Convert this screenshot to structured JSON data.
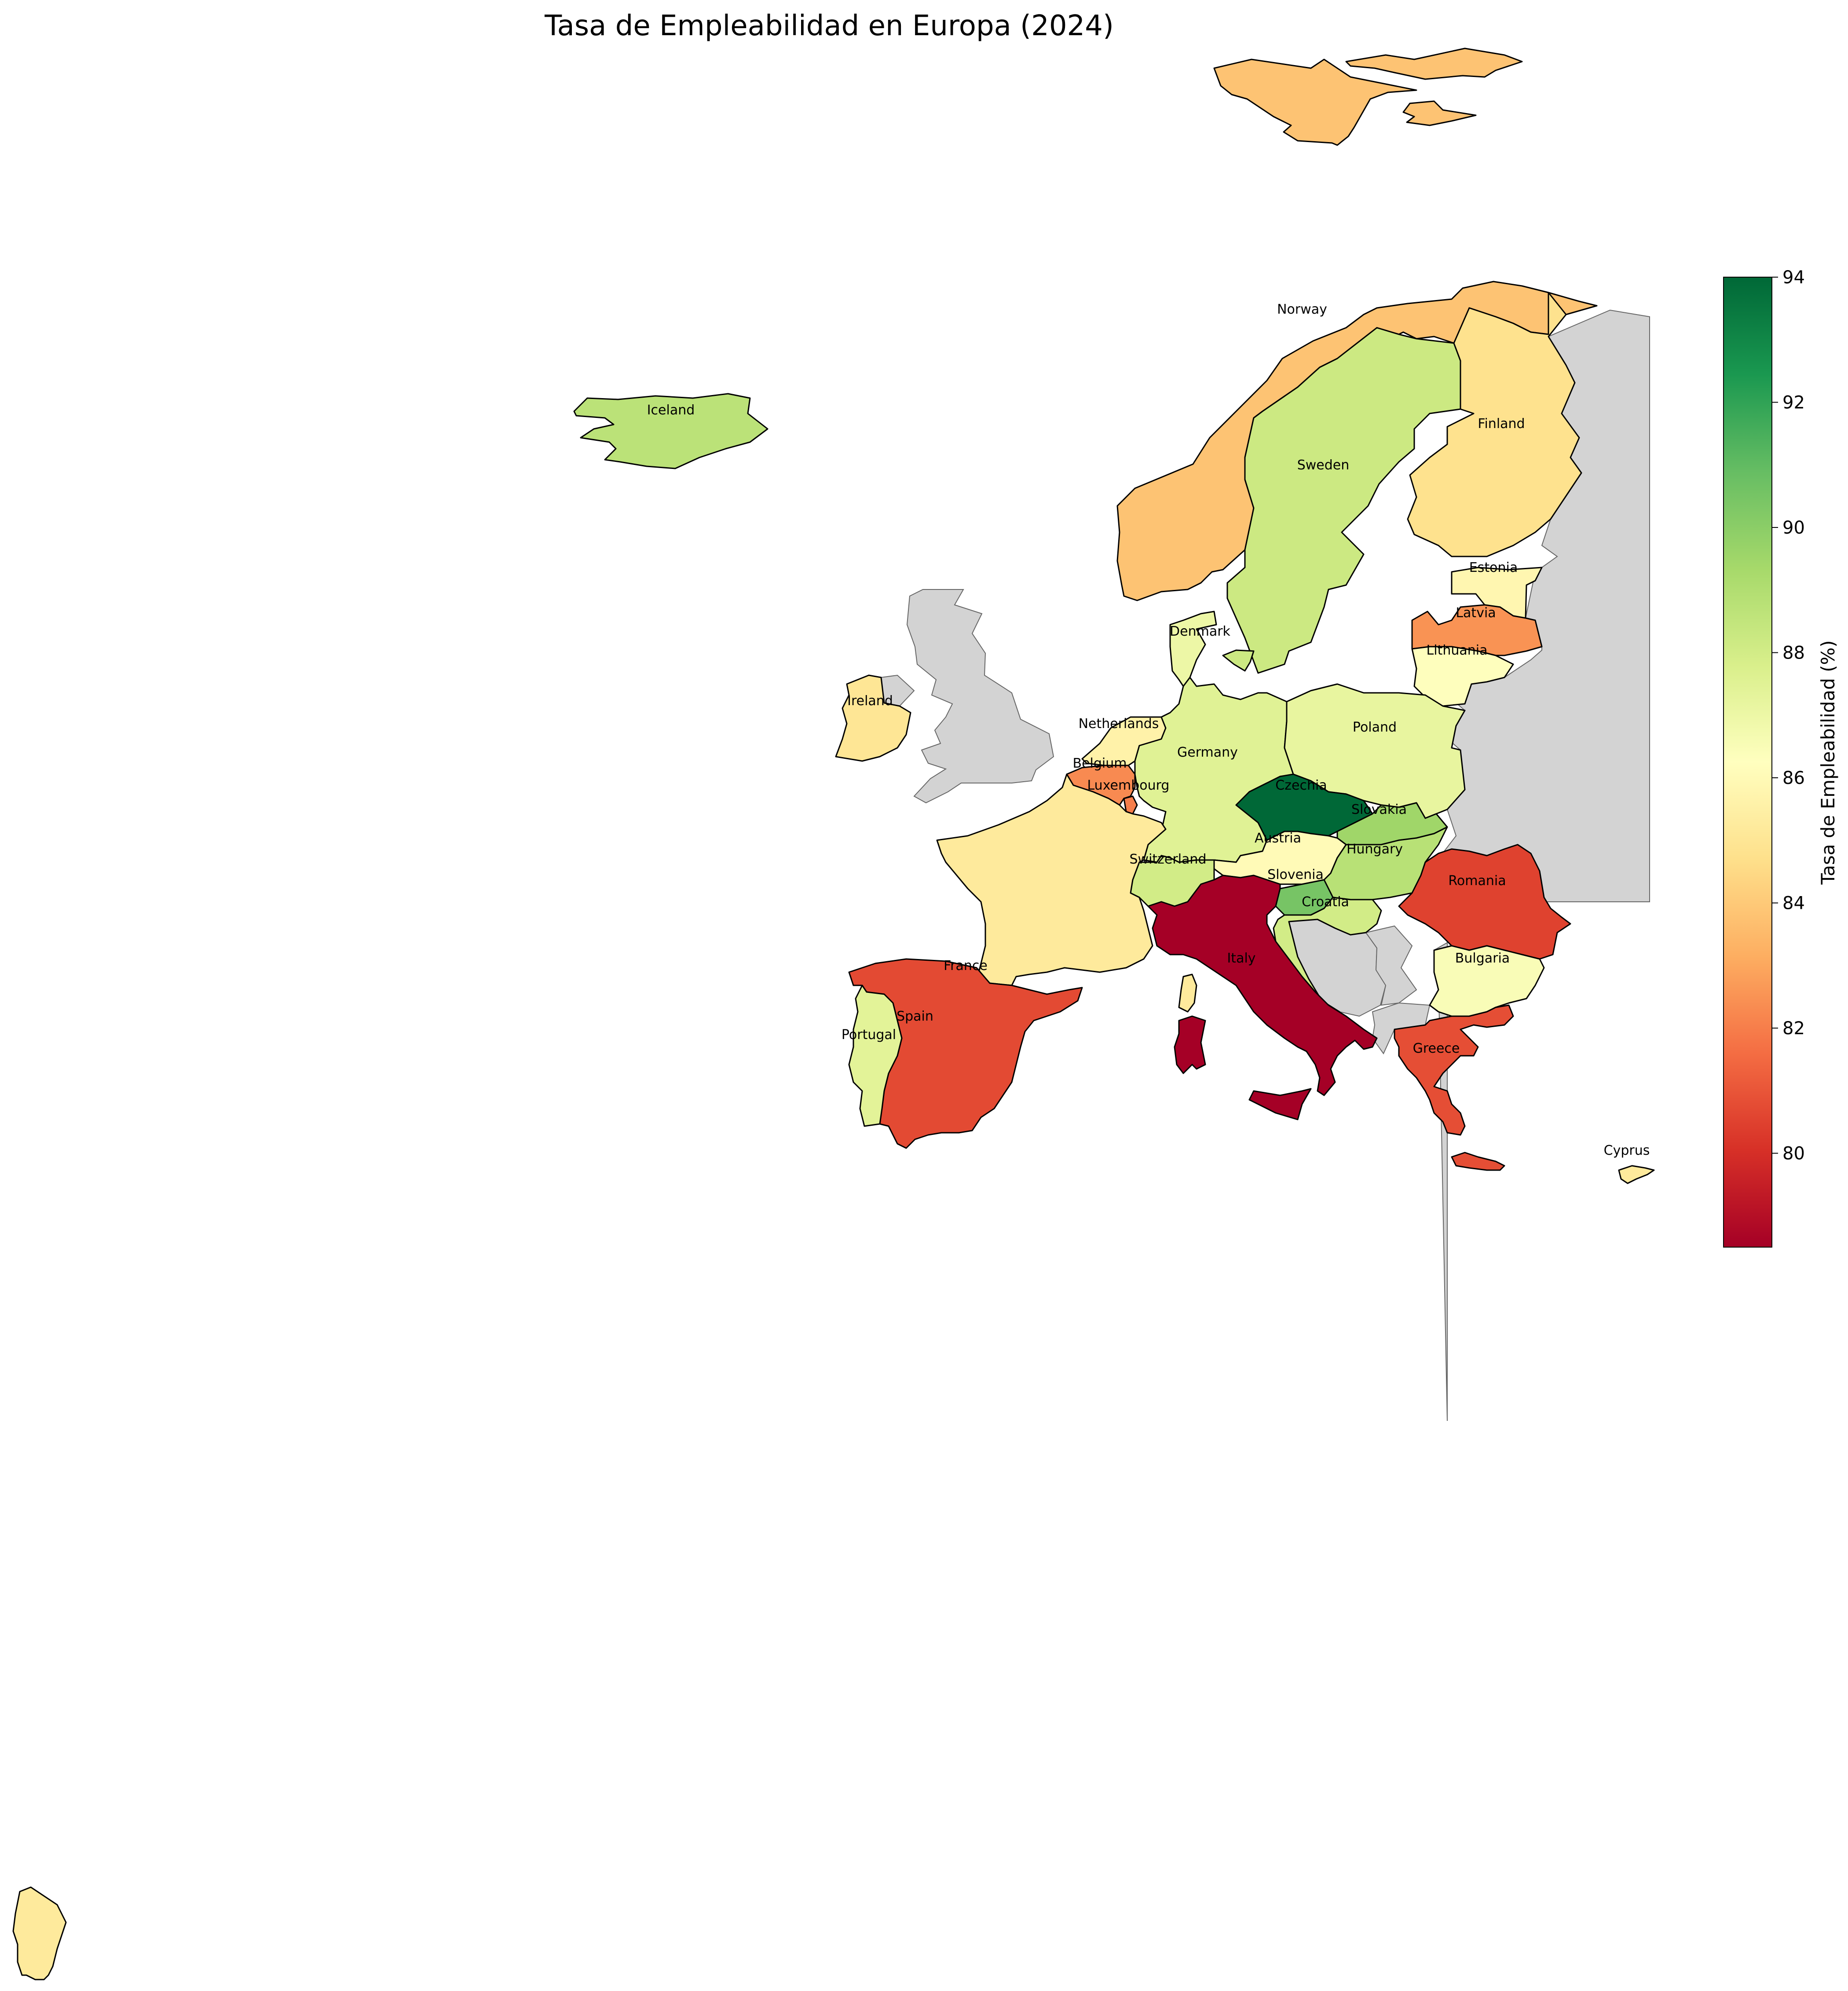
{
  "title": "Tasa de Empleabilidad en Europa (2024)",
  "colorbar": {
    "label": "Tasa de Empleabilidad (%)",
    "min": 78.5,
    "max": 94,
    "ticks": [
      "80",
      "82",
      "84",
      "86",
      "88",
      "90",
      "92",
      "94"
    ],
    "colormap": "RdYlGn",
    "stops": [
      "#a50026",
      "#d73027",
      "#f46d43",
      "#fdae61",
      "#fee08b",
      "#ffffbf",
      "#d9ef8b",
      "#a6d96a",
      "#66bd63",
      "#1a9850",
      "#006837"
    ]
  },
  "colors": {
    "no_data": "#d3d3d3",
    "border": "#000000",
    "no_data_border": "#666666"
  },
  "country_labels": [
    "Norway",
    "Iceland",
    "Sweden",
    "Finland",
    "Estonia",
    "Latvia",
    "Lithuania",
    "Denmark",
    "Ireland",
    "Netherlands",
    "Germany",
    "Poland",
    "Belgium",
    "Luxembourg",
    "Czechia",
    "Slovakia",
    "Austria",
    "Hungary",
    "Switzerland",
    "Romania",
    "Slovenia",
    "Croatia",
    "Italy",
    "Bulgaria",
    "France",
    "Spain",
    "Portugal",
    "Greece",
    "Cyprus"
  ],
  "chart_data": {
    "type": "choropleth",
    "title": "Tasa de Empleabilidad en Europa (2024)",
    "value_label": "Tasa de Empleabilidad (%)",
    "range": [
      78.5,
      94
    ],
    "values": {
      "Czechia": 94.0,
      "Slovakia": 89.5,
      "Slovenia": 90.5,
      "Hungary": 88.8,
      "Iceland": 88.7,
      "Sweden": 88.2,
      "Croatia": 88.0,
      "Switzerland": 88.0,
      "Germany": 87.5,
      "Portugal": 87.4,
      "Poland": 87.2,
      "Denmark": 87.0,
      "Bulgaria": 86.5,
      "Lithuania": 86.3,
      "Austria": 86.0,
      "Estonia": 85.8,
      "Netherlands": 85.6,
      "France": 85.2,
      "Cyprus": 85.2,
      "Ireland": 85.0,
      "Finland": 84.8,
      "Norway": 83.8,
      "Belgium": 82.3,
      "Luxembourg": 82.0,
      "Latvia": 82.5,
      "Greece": 80.8,
      "Spain": 80.7,
      "Romania": 80.5,
      "Italy": 78.5
    }
  }
}
